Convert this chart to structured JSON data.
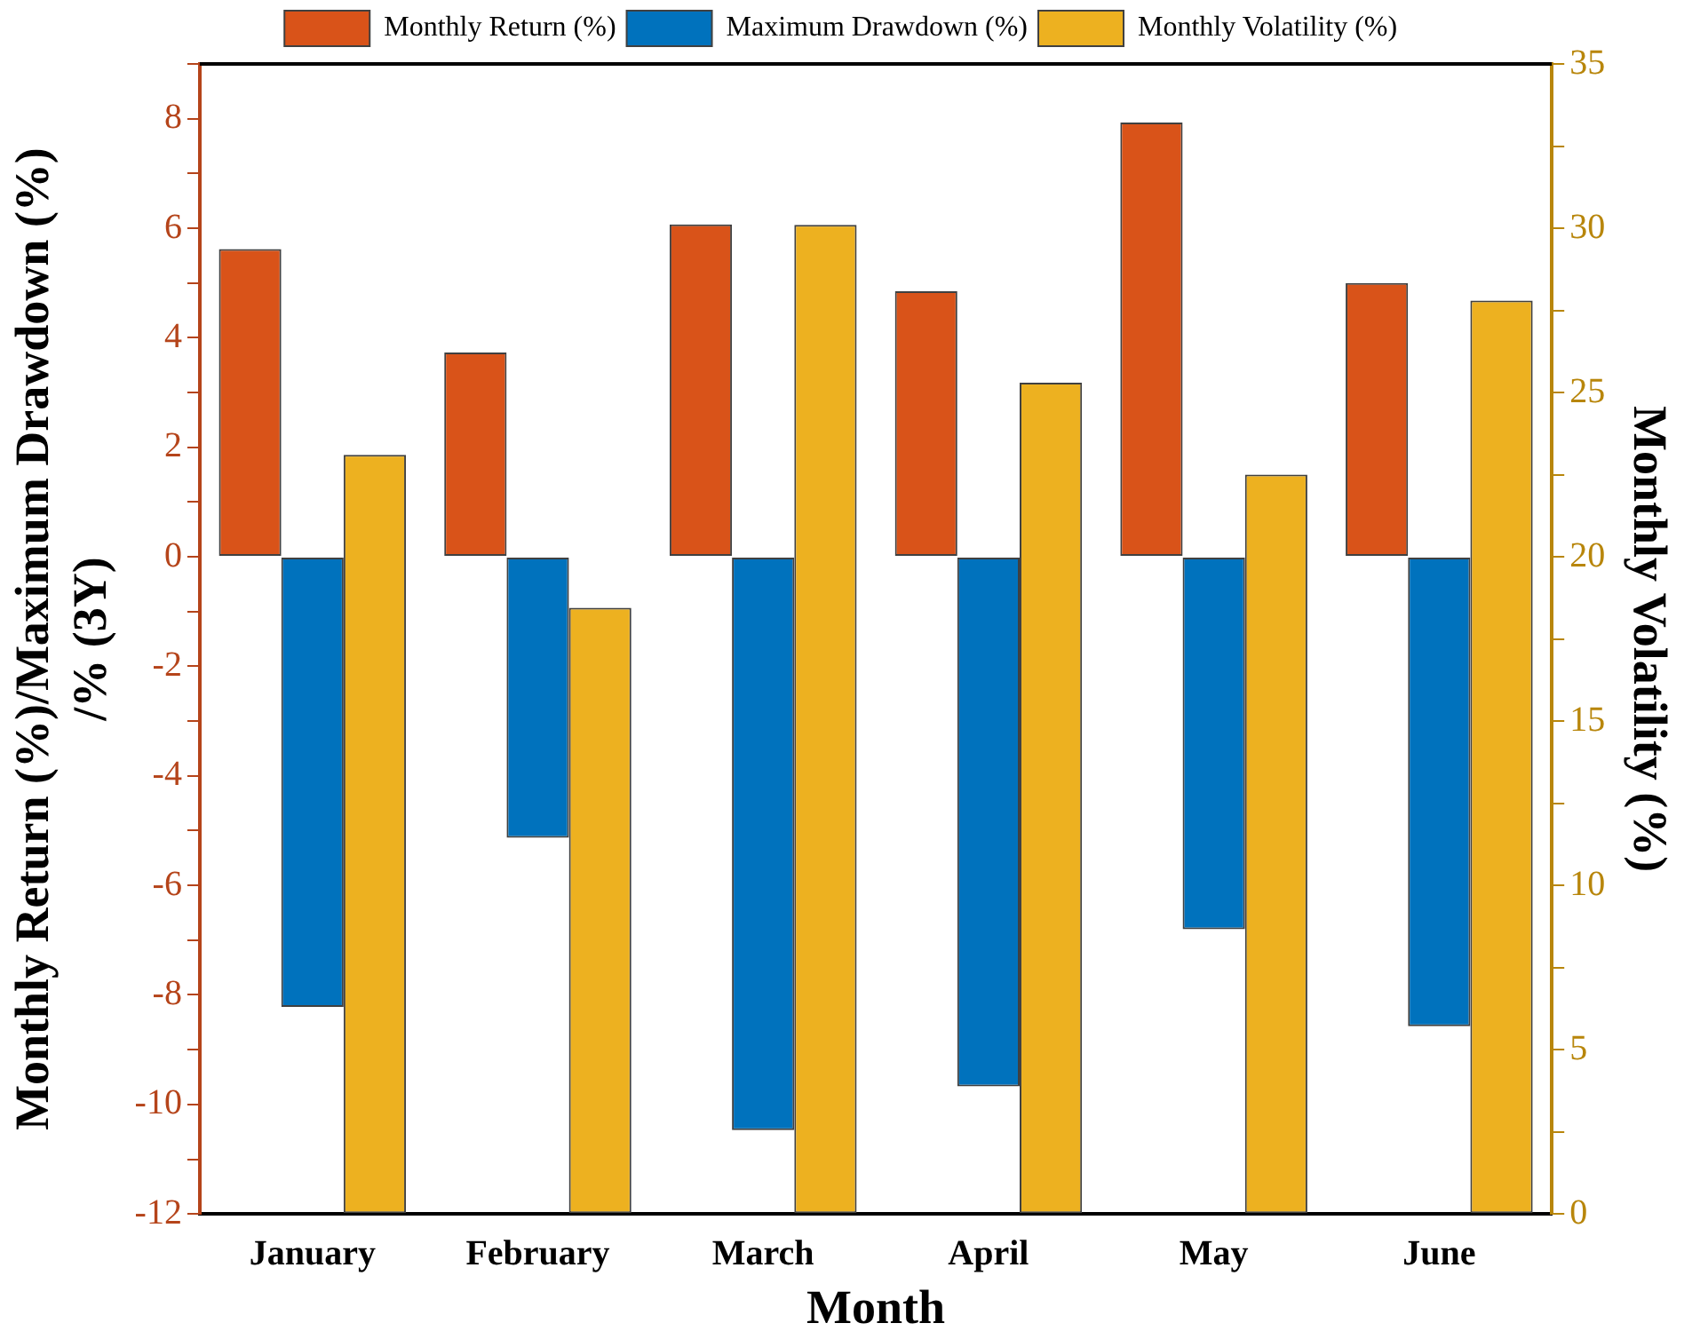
{
  "chart_data": {
    "type": "bar",
    "xlabel": "Month",
    "ylabel": "Monthly Return (%)/Maximum Drawdown (%)\n/% (3Y)",
    "y2label": "Monthly Volatility (%)",
    "categories": [
      "January",
      "February",
      "March",
      "April",
      "May",
      "June"
    ],
    "series": [
      {
        "name": "Monthly Return (%)",
        "color": "#d95319",
        "values": [
          5.62,
          3.73,
          6.07,
          4.85,
          7.93,
          5.0
        ]
      },
      {
        "name": "Maximum Drawdown (%)",
        "color": "#0072bd",
        "values": [
          -8.22,
          -5.13,
          -10.47,
          -9.67,
          -6.8,
          -8.57
        ]
      },
      {
        "name": "Monthly Volatility (%)",
        "color": "#edb120",
        "axis": "y2",
        "values": [
          23.1,
          18.45,
          30.1,
          25.3,
          22.5,
          27.8
        ]
      }
    ],
    "ylim": [
      -12,
      9
    ],
    "yticks": [
      -12,
      {
        "value": -11,
        "label": null
      },
      -10,
      {
        "value": -9,
        "label": null
      },
      -8,
      {
        "value": -7,
        "label": null
      },
      -6,
      {
        "value": -5,
        "label": null
      },
      -4,
      {
        "value": -3,
        "label": null
      },
      -2,
      {
        "value": -1,
        "label": null
      },
      0,
      {
        "value": 1,
        "label": null
      },
      2,
      {
        "value": 3,
        "label": null
      },
      4,
      {
        "value": 5,
        "label": null
      },
      6,
      {
        "value": 7,
        "label": null
      },
      8,
      {
        "value": 9,
        "label": null
      }
    ],
    "y2lim": [
      0,
      35
    ],
    "y2ticks": [
      0,
      {
        "value": 2.5,
        "label": null
      },
      5,
      {
        "value": 7.5,
        "label": null
      },
      10,
      {
        "value": 12.5,
        "label": null
      },
      15,
      {
        "value": 17.5,
        "label": null
      },
      20,
      {
        "value": 22.5,
        "label": null
      },
      25,
      {
        "value": 27.5,
        "label": null
      },
      30,
      {
        "value": 32.5,
        "label": null
      },
      35
    ],
    "grid": false,
    "legend": "top"
  }
}
